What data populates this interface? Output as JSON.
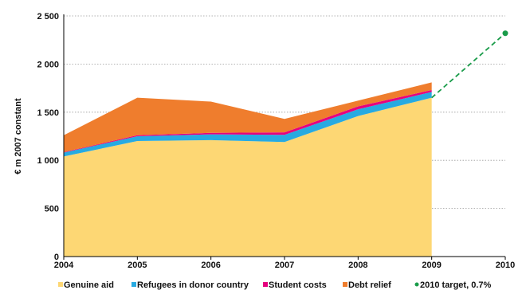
{
  "chart_data": {
    "type": "area",
    "title": "",
    "xlabel": "",
    "ylabel": "€ m 2007 constant",
    "x": [
      "2004",
      "2005",
      "2006",
      "2007",
      "2008",
      "2009",
      "2010"
    ],
    "ylim": [
      0,
      2500
    ],
    "yticks": [
      0,
      500,
      1000,
      1500,
      2000,
      2500
    ],
    "ytick_labels": [
      "0",
      "500",
      "1 000",
      "1 500",
      "2 000",
      "2 500"
    ],
    "grid": "horizontal dotted",
    "legend_position": "bottom",
    "stacked": true,
    "series": [
      {
        "name": "Genuine aid",
        "color": "#fdd774",
        "values": [
          1040,
          1200,
          1210,
          1190,
          1460,
          1650,
          null
        ]
      },
      {
        "name": "Refugees in donor country",
        "color": "#27aae1",
        "values": [
          40,
          50,
          60,
          75,
          70,
          60,
          null
        ]
      },
      {
        "name": "Student costs",
        "color": "#e6007e",
        "values": [
          5,
          10,
          15,
          25,
          30,
          20,
          null
        ]
      },
      {
        "name": "Debt relief",
        "color": "#ef7d2d",
        "values": [
          175,
          390,
          325,
          140,
          60,
          80,
          null
        ]
      }
    ],
    "target": {
      "name": "2010 target, 0.7%",
      "color": "#1a9c4a",
      "from": {
        "x": "2009",
        "y": 1650
      },
      "to": {
        "x": "2010",
        "y": 2320
      },
      "style": "dashed"
    }
  }
}
